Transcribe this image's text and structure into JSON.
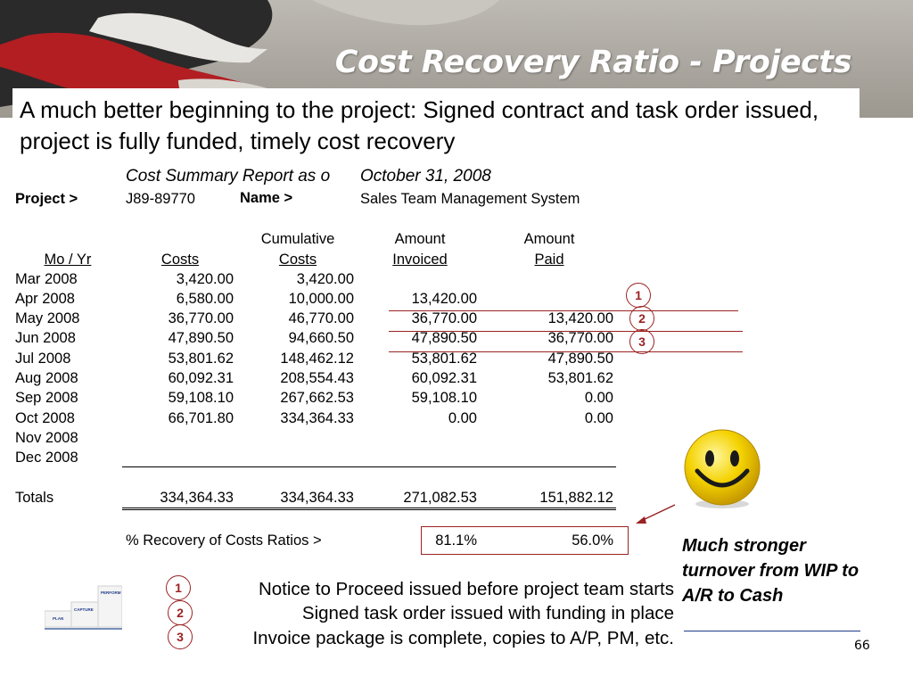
{
  "title": "Cost Recovery Ratio - Projects",
  "subtitle": "A much better beginning to the project: Signed contract and task order issued, project is fully funded, timely cost recovery",
  "report": {
    "title_part1": "Cost Summary Report as o",
    "title_part2": "October 31, 2008",
    "project_label": "Project >",
    "project_id": "J89-89770",
    "name_label": "Name >",
    "name_value": "Sales Team Management System"
  },
  "table": {
    "headers": {
      "mo_yr": "Mo / Yr",
      "costs": "Costs",
      "cum_top": "Cumulative",
      "cum_bottom": "Costs",
      "inv_top": "Amount",
      "inv_bottom": "Invoiced",
      "paid_top": "Amount",
      "paid_bottom": "Paid"
    },
    "rows": [
      {
        "month": "Mar 2008",
        "costs": "3,420.00",
        "cumulative": "3,420.00",
        "invoiced": "",
        "paid": ""
      },
      {
        "month": "Apr 2008",
        "costs": "6,580.00",
        "cumulative": "10,000.00",
        "invoiced": "13,420.00",
        "paid": ""
      },
      {
        "month": "May 2008",
        "costs": "36,770.00",
        "cumulative": "46,770.00",
        "invoiced": "36,770.00",
        "paid": "13,420.00"
      },
      {
        "month": "Jun 2008",
        "costs": "47,890.50",
        "cumulative": "94,660.50",
        "invoiced": "47,890.50",
        "paid": "36,770.00"
      },
      {
        "month": "Jul 2008",
        "costs": "53,801.62",
        "cumulative": "148,462.12",
        "invoiced": "53,801.62",
        "paid": "47,890.50"
      },
      {
        "month": "Aug 2008",
        "costs": "60,092.31",
        "cumulative": "208,554.43",
        "invoiced": "60,092.31",
        "paid": "53,801.62"
      },
      {
        "month": "Sep 2008",
        "costs": "59,108.10",
        "cumulative": "267,662.53",
        "invoiced": "59,108.10",
        "paid": "0.00"
      },
      {
        "month": "Oct 2008",
        "costs": "66,701.80",
        "cumulative": "334,364.33",
        "invoiced": "0.00",
        "paid": "0.00"
      },
      {
        "month": "Nov 2008",
        "costs": "",
        "cumulative": "",
        "invoiced": "",
        "paid": ""
      },
      {
        "month": "Dec 2008",
        "costs": "",
        "cumulative": "",
        "invoiced": "",
        "paid": ""
      }
    ],
    "totals": {
      "label": "Totals",
      "costs": "334,364.33",
      "cumulative": "334,364.33",
      "invoiced": "271,082.53",
      "paid": "151,882.12"
    },
    "ratio": {
      "label": "% Recovery of Costs Ratios >",
      "invoiced": "81.1%",
      "paid": "56.0%"
    }
  },
  "note": "Much stronger turnover from WIP to A/R to Cash",
  "legend": [
    {
      "num": "1",
      "text": "Notice to Proceed issued before project team starts"
    },
    {
      "num": "2",
      "text": "Signed task order issued with funding in place"
    },
    {
      "num": "3",
      "text": "Invoice package is complete, copies to A/P, PM, etc."
    }
  ],
  "logo": {
    "steps": [
      "PLAN",
      "CAPTURE",
      "PERFORM"
    ]
  },
  "page_number": "66",
  "colors": {
    "accent": "#9b2222",
    "title_text": "#ffffff",
    "banner": "#a9a59e",
    "note_underline": "#1f3c88"
  }
}
